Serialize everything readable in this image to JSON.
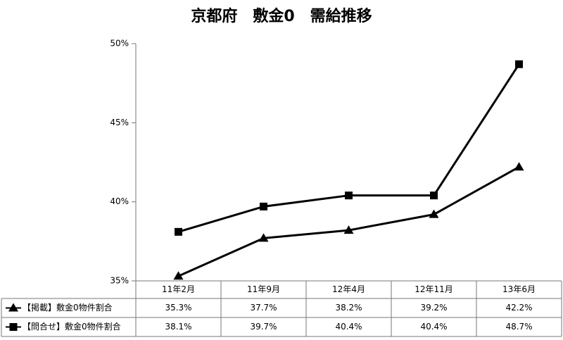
{
  "chart_data": {
    "type": "line",
    "title": "京都府　敷金0　需給推移",
    "categories": [
      "11年2月",
      "11年9月",
      "12年4月",
      "12年11月",
      "13年6月"
    ],
    "series": [
      {
        "name": "【掲載】敷金0物件割合",
        "color": "#000000",
        "marker": "triangle",
        "values": [
          35.3,
          37.7,
          38.2,
          39.2,
          42.2
        ],
        "value_labels": [
          "35.3%",
          "37.7%",
          "38.2%",
          "39.2%",
          "42.2%"
        ]
      },
      {
        "name": "【問合せ】敷金0物件割合",
        "color": "#000000",
        "marker": "square",
        "values": [
          38.1,
          39.7,
          40.4,
          40.4,
          48.7
        ],
        "value_labels": [
          "38.1%",
          "39.7%",
          "40.4%",
          "40.4%",
          "48.7%"
        ]
      }
    ],
    "ylim": [
      35,
      50
    ],
    "yticks": [
      {
        "value": 35,
        "label": "35%"
      },
      {
        "value": 40,
        "label": "40%"
      },
      {
        "value": 45,
        "label": "45%"
      },
      {
        "value": 50,
        "label": "50%"
      }
    ],
    "grid": false
  }
}
